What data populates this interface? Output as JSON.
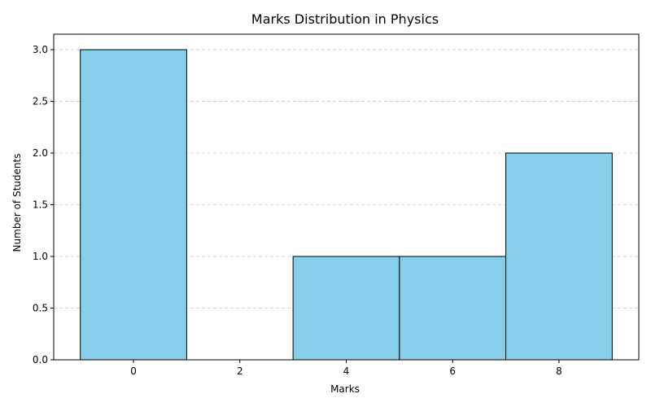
{
  "chart_data": {
    "type": "bar",
    "title": "Marks Distribution in Physics",
    "xlabel": "Marks",
    "ylabel": "Number of Students",
    "bins": [
      {
        "x0": -1,
        "x1": 1,
        "value": 3
      },
      {
        "x0": 1,
        "x1": 3,
        "value": 0
      },
      {
        "x0": 3,
        "x1": 5,
        "value": 1
      },
      {
        "x0": 5,
        "x1": 7,
        "value": 1
      },
      {
        "x0": 7,
        "x1": 9,
        "value": 2
      }
    ],
    "xlim": [
      -1.5,
      9.5
    ],
    "ylim": [
      0,
      3.15
    ],
    "xticks": [
      0,
      2,
      4,
      6,
      8
    ],
    "xtick_labels": [
      "0",
      "2",
      "4",
      "6",
      "8"
    ],
    "yticks": [
      0,
      0.5,
      1,
      1.5,
      2,
      2.5,
      3
    ],
    "ytick_labels": [
      "0.0",
      "0.5",
      "1.0",
      "1.5",
      "2.0",
      "2.5",
      "3.0"
    ],
    "grid": {
      "axis": "y",
      "style": "dashed"
    },
    "colors": {
      "bar_fill": "#87CEEB",
      "bar_edge": "#000000",
      "grid": "#c8c8c8"
    }
  }
}
